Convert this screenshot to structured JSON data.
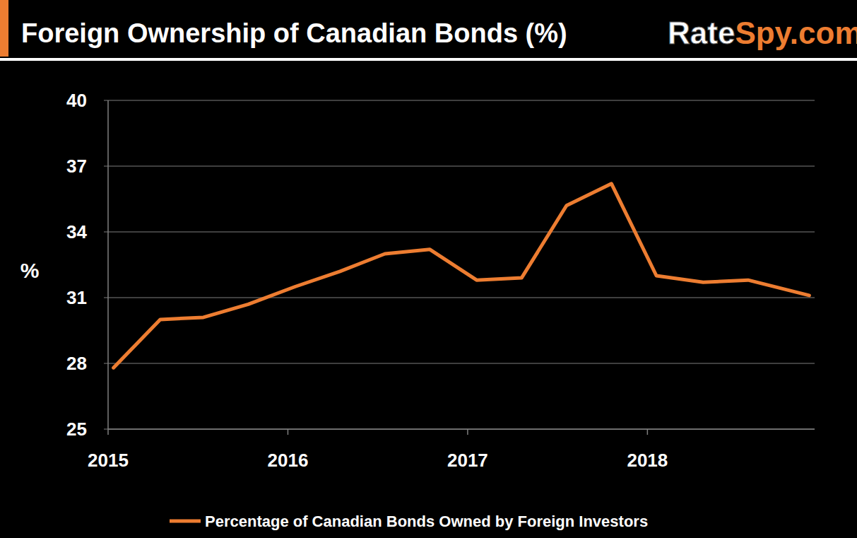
{
  "chart_data": {
    "type": "line",
    "title": "Foreign Ownership of Canadian Bonds (%)",
    "annotations": [
      "RateSpy.com"
    ],
    "y_label": "%",
    "x": [
      2015.03,
      2015.29,
      2015.53,
      2015.78,
      2016.04,
      2016.29,
      2016.54,
      2016.79,
      2017.05,
      2017.3,
      2017.55,
      2017.8,
      2018.05,
      2018.31,
      2018.56,
      2018.9
    ],
    "series": [
      {
        "name": "Percentage of Canadian Bonds Owned by Foreign Investors",
        "color": "#ed7d31",
        "values": [
          27.8,
          30.0,
          30.1,
          30.7,
          31.5,
          32.2,
          33.0,
          33.2,
          31.8,
          31.9,
          35.2,
          36.2,
          32.0,
          31.7,
          31.8,
          31.1
        ]
      }
    ],
    "xlim": [
      2015,
      2018.93
    ],
    "xticks": [
      2015,
      2016,
      2017,
      2018
    ],
    "ylim": [
      25,
      40
    ],
    "yticks": [
      25,
      28,
      31,
      34,
      37,
      40
    ],
    "grid": true,
    "legend": "bottom"
  }
}
